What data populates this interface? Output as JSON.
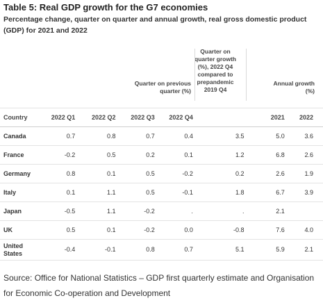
{
  "title": "Table 5: Real GDP growth for the G7 economies",
  "subtitle": "Percentage change, quarter on quarter and annual growth, real gross domestic product (GDP) for 2021 and 2022",
  "group_headers": {
    "prev_quarter": "Quarter on previous quarter (%)",
    "prepandemic": "Quarter on quarter growth (%), 2022 Q4 compared to prepandemic 2019 Q4",
    "annual": "Annual growth (%)"
  },
  "columns": [
    "Country",
    "2022 Q1",
    "2022 Q2",
    "2022 Q3",
    "2022 Q4",
    "",
    "2021",
    "2022"
  ],
  "rows": [
    {
      "country": "Canada",
      "q1": "0.7",
      "q2": "0.8",
      "q3": "0.7",
      "q4": "0.4",
      "pre": "3.5",
      "y2021": "5.0",
      "y2022": "3.6"
    },
    {
      "country": "France",
      "q1": "-0.2",
      "q2": "0.5",
      "q3": "0.2",
      "q4": "0.1",
      "pre": "1.2",
      "y2021": "6.8",
      "y2022": "2.6"
    },
    {
      "country": "Germany",
      "q1": "0.8",
      "q2": "0.1",
      "q3": "0.5",
      "q4": "-0.2",
      "pre": "0.2",
      "y2021": "2.6",
      "y2022": "1.9"
    },
    {
      "country": "Italy",
      "q1": "0.1",
      "q2": "1.1",
      "q3": "0.5",
      "q4": "-0.1",
      "pre": "1.8",
      "y2021": "6.7",
      "y2022": "3.9"
    },
    {
      "country": "Japan",
      "q1": "-0.5",
      "q2": "1.1",
      "q3": "-0.2",
      "q4": ".",
      "pre": ".",
      "y2021": "2.1",
      "y2022": ""
    },
    {
      "country": "UK",
      "q1": "0.5",
      "q2": "0.1",
      "q3": "-0.2",
      "q4": "0.0",
      "pre": "-0.8",
      "y2021": "7.6",
      "y2022": "4.0"
    },
    {
      "country": "United States",
      "q1": "-0.4",
      "q2": "-0.1",
      "q3": "0.8",
      "q4": "0.7",
      "pre": "5.1",
      "y2021": "5.9",
      "y2022": "2.1"
    }
  ],
  "source": "Source: Office for National Statistics – GDP first quarterly estimate and Organisation for Economic Co-operation and Development"
}
